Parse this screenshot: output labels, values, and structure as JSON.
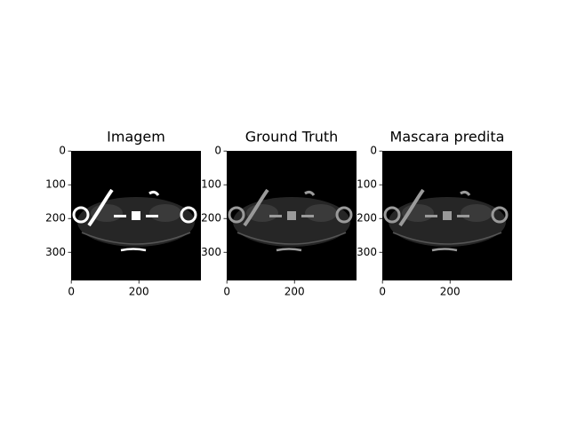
{
  "chart_data": [
    {
      "type": "image",
      "title": "Imagem",
      "xlim": [
        -0.5,
        383.5
      ],
      "ylim": [
        383.5,
        -0.5
      ],
      "xticks": [
        0,
        200
      ],
      "yticks": [
        0,
        100,
        200,
        300
      ]
    },
    {
      "type": "image",
      "title": "Ground Truth",
      "xlim": [
        -0.5,
        383.5
      ],
      "ylim": [
        383.5,
        -0.5
      ],
      "xticks": [
        0,
        200
      ],
      "yticks": [
        0,
        100,
        200,
        300
      ]
    },
    {
      "type": "image",
      "title": "Mascara predita",
      "xlim": [
        -0.5,
        383.5
      ],
      "ylim": [
        383.5,
        -0.5
      ],
      "xticks": [
        0,
        200
      ],
      "yticks": [
        0,
        100,
        200,
        300
      ]
    }
  ]
}
